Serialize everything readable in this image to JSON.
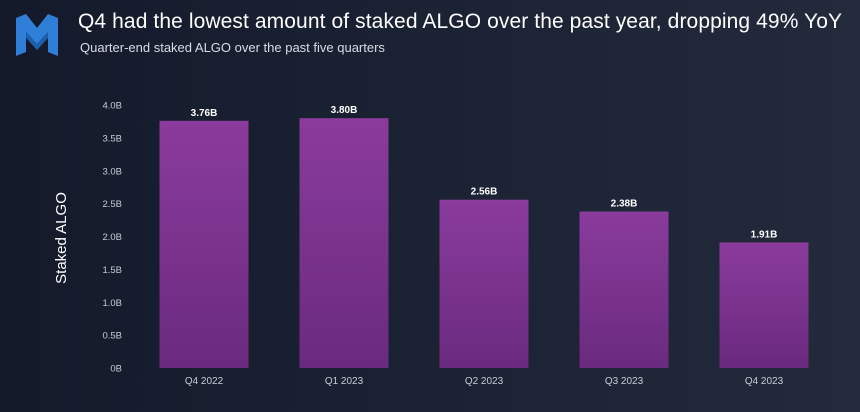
{
  "header": {
    "title": "Q4 had the lowest amount of staked ALGO over the past year, dropping 49% YoY",
    "subtitle": "Quarter-end staked ALGO over the past five quarters"
  },
  "brand": {
    "logo_icon": "messari-m-logo-icon",
    "accent_color": "#2f7fd9"
  },
  "chart_data": {
    "type": "bar",
    "title": "",
    "categories": [
      "Q4 2022",
      "Q1 2023",
      "Q2 2023",
      "Q3 2023",
      "Q4 2023"
    ],
    "values": [
      3.76,
      3.8,
      2.56,
      2.38,
      1.91
    ],
    "value_labels": [
      "3.76B",
      "3.80B",
      "2.56B",
      "2.38B",
      "1.91B"
    ],
    "xlabel": "",
    "ylabel": "Staked ALGO",
    "ylim": [
      0,
      4.0
    ],
    "yticks": [
      0,
      0.5,
      1.0,
      1.5,
      2.0,
      2.5,
      3.0,
      3.5,
      4.0
    ],
    "ytick_labels": [
      "0B",
      "0.5B",
      "1.0B",
      "1.5B",
      "2.0B",
      "2.5B",
      "3.0B",
      "3.5B",
      "4.0B"
    ],
    "grid": false,
    "legend": "none",
    "bar_color_top": "#8a3b9c",
    "bar_color_bottom": "#6a2a7f"
  }
}
